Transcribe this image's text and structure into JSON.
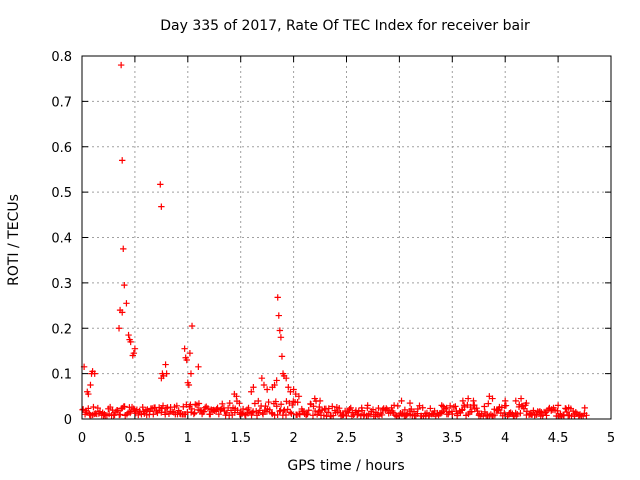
{
  "chart_data": {
    "type": "scatter",
    "title": "Day 335 of 2017, Rate Of TEC Index for receiver bair",
    "xlabel": "GPS time / hours",
    "ylabel": "ROTI / TECUs",
    "xlim": [
      0,
      5
    ],
    "ylim": [
      0,
      0.8
    ],
    "xticks": [
      0,
      0.5,
      1,
      1.5,
      2,
      2.5,
      3,
      3.5,
      4,
      4.5,
      5
    ],
    "xtick_labels": [
      "0",
      "0.5",
      "1",
      "1.5",
      "2",
      "2.5",
      "3",
      "3.5",
      "4",
      "4.5",
      "5"
    ],
    "yticks": [
      0,
      0.1,
      0.2,
      0.3,
      0.4,
      0.5,
      0.6,
      0.7,
      0.8
    ],
    "ytick_labels": [
      "0",
      "0.1",
      "0.2",
      "0.3",
      "0.4",
      "0.5",
      "0.6",
      "0.7",
      "0.8"
    ],
    "grid": true,
    "marker": "+",
    "color": "#ff0000",
    "series": [
      {
        "name": "ROTI",
        "points": [
          [
            0.02,
            0.115
          ],
          [
            0.05,
            0.06
          ],
          [
            0.06,
            0.055
          ],
          [
            0.08,
            0.075
          ],
          [
            0.09,
            0.1
          ],
          [
            0.1,
            0.105
          ],
          [
            0.12,
            0.1
          ],
          [
            0.35,
            0.2
          ],
          [
            0.36,
            0.24
          ],
          [
            0.37,
            0.78
          ],
          [
            0.38,
            0.235
          ],
          [
            0.38,
            0.57
          ],
          [
            0.39,
            0.375
          ],
          [
            0.4,
            0.295
          ],
          [
            0.42,
            0.255
          ],
          [
            0.44,
            0.185
          ],
          [
            0.45,
            0.175
          ],
          [
            0.46,
            0.17
          ],
          [
            0.48,
            0.14
          ],
          [
            0.49,
            0.145
          ],
          [
            0.5,
            0.155
          ],
          [
            0.74,
            0.517
          ],
          [
            0.75,
            0.468
          ],
          [
            0.75,
            0.09
          ],
          [
            0.76,
            0.1
          ],
          [
            0.77,
            0.095
          ],
          [
            0.79,
            0.12
          ],
          [
            0.8,
            0.1
          ],
          [
            0.97,
            0.155
          ],
          [
            0.98,
            0.135
          ],
          [
            0.99,
            0.13
          ],
          [
            1.0,
            0.08
          ],
          [
            1.01,
            0.075
          ],
          [
            1.02,
            0.145
          ],
          [
            1.03,
            0.1
          ],
          [
            1.04,
            0.205
          ],
          [
            1.1,
            0.115
          ],
          [
            1.44,
            0.055
          ],
          [
            1.46,
            0.05
          ],
          [
            1.6,
            0.06
          ],
          [
            1.62,
            0.07
          ],
          [
            1.7,
            0.09
          ],
          [
            1.72,
            0.075
          ],
          [
            1.75,
            0.065
          ],
          [
            1.8,
            0.07
          ],
          [
            1.82,
            0.075
          ],
          [
            1.84,
            0.085
          ],
          [
            1.85,
            0.268
          ],
          [
            1.86,
            0.228
          ],
          [
            1.87,
            0.195
          ],
          [
            1.88,
            0.18
          ],
          [
            1.89,
            0.138
          ],
          [
            1.9,
            0.1
          ],
          [
            1.91,
            0.095
          ],
          [
            1.93,
            0.09
          ],
          [
            1.95,
            0.07
          ],
          [
            1.97,
            0.06
          ],
          [
            2.0,
            0.065
          ],
          [
            2.02,
            0.055
          ],
          [
            2.05,
            0.05
          ],
          [
            2.2,
            0.045
          ],
          [
            2.25,
            0.04
          ],
          [
            2.7,
            0.03
          ],
          [
            2.95,
            0.03
          ],
          [
            3.02,
            0.04
          ],
          [
            3.1,
            0.035
          ],
          [
            3.4,
            0.03
          ],
          [
            3.6,
            0.04
          ],
          [
            3.65,
            0.045
          ],
          [
            3.7,
            0.04
          ],
          [
            3.85,
            0.05
          ],
          [
            3.88,
            0.045
          ],
          [
            4.0,
            0.04
          ],
          [
            4.1,
            0.04
          ],
          [
            4.15,
            0.045
          ],
          [
            4.2,
            0.035
          ],
          [
            4.5,
            0.03
          ],
          [
            4.6,
            0.025
          ]
        ],
        "baseline": {
          "x_range": [
            0.0,
            4.77
          ],
          "segments": [
            {
              "x_range": [
                0.0,
                0.7
              ],
              "y_range": [
                0.008,
                0.028
              ]
            },
            {
              "x_range": [
                0.7,
                1.3
              ],
              "y_range": [
                0.01,
                0.035
              ]
            },
            {
              "x_range": [
                1.3,
                2.3
              ],
              "y_range": [
                0.008,
                0.04
              ]
            },
            {
              "x_range": [
                2.3,
                3.5
              ],
              "y_range": [
                0.006,
                0.03
              ]
            },
            {
              "x_range": [
                3.5,
                4.3
              ],
              "y_range": [
                0.006,
                0.035
              ]
            },
            {
              "x_range": [
                4.3,
                4.77
              ],
              "y_range": [
                0.006,
                0.025
              ]
            }
          ]
        }
      }
    ]
  }
}
